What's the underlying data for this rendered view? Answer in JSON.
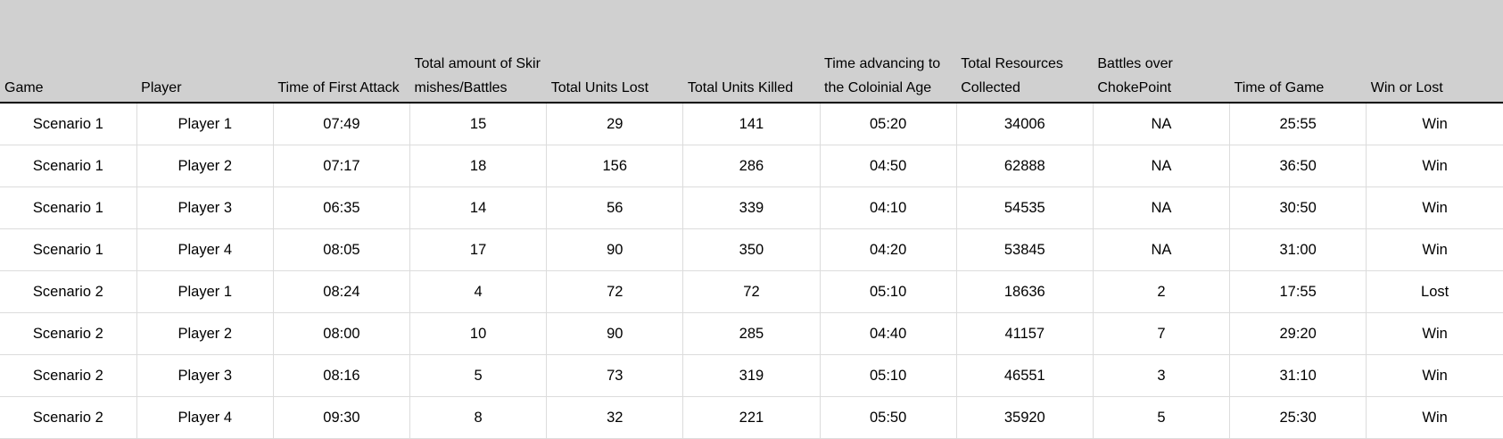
{
  "headers": [
    "Game",
    "Player",
    "Time of First Attack",
    "Total amount of Skirmishes/Battles",
    "Total Units Lost",
    "Total Units Killed",
    "Time advancing to the Coloinial Age",
    "Total Resources Collected",
    "Battles over ChokePoint",
    "Time of Game",
    "Win or Lost"
  ],
  "rows": [
    [
      "Scenario 1",
      "Player 1",
      "07:49",
      "15",
      "29",
      "141",
      "05:20",
      "34006",
      "NA",
      "25:55",
      "Win"
    ],
    [
      "Scenario 1",
      "Player 2",
      "07:17",
      "18",
      "156",
      "286",
      "04:50",
      "62888",
      "NA",
      "36:50",
      "Win"
    ],
    [
      "Scenario 1",
      "Player 3",
      "06:35",
      "14",
      "56",
      "339",
      "04:10",
      "54535",
      "NA",
      "30:50",
      "Win"
    ],
    [
      "Scenario 1",
      "Player 4",
      "08:05",
      "17",
      "90",
      "350",
      "04:20",
      "53845",
      "NA",
      "31:00",
      "Win"
    ],
    [
      "Scenario 2",
      "Player 1",
      "08:24",
      "4",
      "72",
      "72",
      "05:10",
      "18636",
      "2",
      "17:55",
      "Lost"
    ],
    [
      "Scenario 2",
      "Player 2",
      "08:00",
      "10",
      "90",
      "285",
      "04:40",
      "41157",
      "7",
      "29:20",
      "Win"
    ],
    [
      "Scenario 2",
      "Player 3",
      "08:16",
      "5",
      "73",
      "319",
      "05:10",
      "46551",
      "3",
      "31:10",
      "Win"
    ],
    [
      "Scenario 2",
      "Player 4",
      "09:30",
      "8",
      "32",
      "221",
      "05:50",
      "35920",
      "5",
      "25:30",
      "Win"
    ]
  ]
}
